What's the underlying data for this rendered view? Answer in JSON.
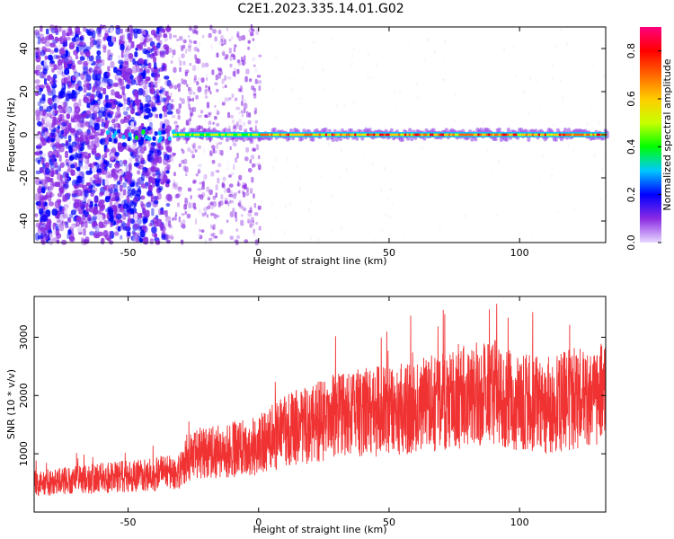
{
  "figure_title": "C2E1.2023.335.14.01.G02",
  "chart_data": [
    {
      "type": "heatmap",
      "title": "",
      "xlabel": "Height of straight line (km)",
      "ylabel": "Frequency (Hz)",
      "xlim": [
        -86,
        133
      ],
      "ylim": [
        -50,
        50
      ],
      "xticks": [
        -50,
        0,
        50,
        100
      ],
      "yticks": [
        -40,
        -20,
        0,
        20,
        40
      ],
      "colorbar": {
        "label": "Normalized spectral amplitude",
        "range": [
          0.0,
          0.9
        ],
        "ticks": [
          0.0,
          0.2,
          0.4,
          0.6,
          0.8
        ],
        "colormap": [
          "#e8d8ff",
          "#8a2be2",
          "#0000ff",
          "#00c8ff",
          "#00ff00",
          "#c8ff00",
          "#ffcc00",
          "#ff6600",
          "#ff0000",
          "#ff0080"
        ]
      },
      "features": {
        "noisy_region_x": [
          -86,
          -35
        ],
        "scattered_region_x": [
          -35,
          0
        ],
        "tone_start_x": -33,
        "tone_frequency_hz": 0
      }
    },
    {
      "type": "line",
      "title": "",
      "xlabel": "Height of straight line (km)",
      "ylabel": "SNR (10 * v/v)",
      "xlim": [
        -86,
        133
      ],
      "ylim": [
        0,
        3700
      ],
      "xticks": [
        -50,
        0,
        50,
        100
      ],
      "yticks": [
        1000,
        2000,
        3000
      ],
      "line_color": "#f03232",
      "series": [
        {
          "x": [
            -86,
            -70,
            -55,
            -40,
            -30,
            -26,
            -15,
            -5,
            0,
            10,
            20,
            30,
            40,
            50,
            60,
            70,
            80,
            90,
            100,
            110,
            120,
            133
          ],
          "y": [
            500,
            550,
            600,
            650,
            700,
            1000,
            1050,
            1100,
            1150,
            1400,
            1500,
            1650,
            1700,
            1750,
            1800,
            1900,
            2000,
            2050,
            1900,
            1800,
            1950,
            2000
          ]
        }
      ]
    }
  ]
}
